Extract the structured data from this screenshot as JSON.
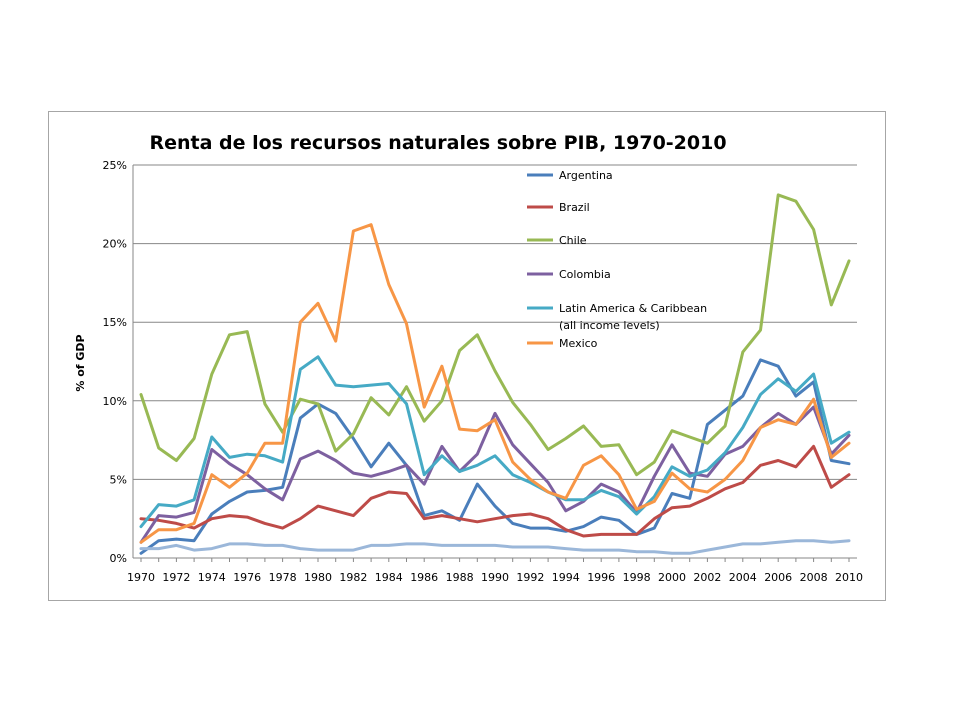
{
  "chart_data": {
    "type": "line",
    "title": "Renta de los recursos naturales sobre PIB, 1970-2010",
    "ylabel": "% of GDP",
    "xlabel": "",
    "ylim": [
      0,
      25
    ],
    "yticks": [
      "0%",
      "5%",
      "10%",
      "15%",
      "20%",
      "25%"
    ],
    "ytick_values": [
      0,
      5,
      10,
      15,
      20,
      25
    ],
    "x": [
      1970,
      1971,
      1972,
      1973,
      1974,
      1975,
      1976,
      1977,
      1978,
      1979,
      1980,
      1981,
      1982,
      1983,
      1984,
      1985,
      1986,
      1987,
      1988,
      1989,
      1990,
      1991,
      1992,
      1993,
      1994,
      1995,
      1996,
      1997,
      1998,
      1999,
      2000,
      2001,
      2002,
      2003,
      2004,
      2005,
      2006,
      2007,
      2008,
      2009,
      2010
    ],
    "xticks": [
      "1970",
      "1972",
      "1974",
      "1976",
      "1978",
      "1980",
      "1982",
      "1984",
      "1986",
      "1988",
      "1990",
      "1992",
      "1994",
      "1996",
      "1998",
      "2000",
      "2002",
      "2004",
      "2006",
      "2008",
      "2010"
    ],
    "grid": "horizontal",
    "legend_position": "top-center",
    "series": [
      {
        "name": "Argentina",
        "color": "#4a7ebb",
        "values": [
          0.3,
          1.1,
          1.2,
          1.1,
          2.8,
          3.6,
          4.2,
          4.3,
          4.5,
          8.9,
          9.8,
          9.2,
          7.6,
          5.8,
          7.3,
          5.9,
          2.7,
          3.0,
          2.4,
          4.7,
          3.3,
          2.2,
          1.9,
          1.9,
          1.7,
          2.0,
          2.6,
          2.4,
          1.5,
          1.9,
          4.1,
          3.8,
          8.5,
          9.4,
          10.3,
          12.6,
          12.2,
          10.3,
          11.2,
          6.2,
          6.0
        ]
      },
      {
        "name": "Brazil",
        "color": "#be4b48",
        "values": [
          2.5,
          2.4,
          2.2,
          1.9,
          2.5,
          2.7,
          2.6,
          2.2,
          1.9,
          2.5,
          3.3,
          3.0,
          2.7,
          3.8,
          4.2,
          4.1,
          2.5,
          2.7,
          2.5,
          2.3,
          2.5,
          2.7,
          2.8,
          2.5,
          1.8,
          1.4,
          1.5,
          1.5,
          1.5,
          2.5,
          3.2,
          3.3,
          3.8,
          4.4,
          4.8,
          5.9,
          6.2,
          5.8,
          7.1,
          4.5,
          5.3
        ]
      },
      {
        "name": "Chile",
        "color": "#98b954",
        "values": [
          10.4,
          7.0,
          6.2,
          7.6,
          11.7,
          14.2,
          14.4,
          9.8,
          8.0,
          10.1,
          9.8,
          6.8,
          7.9,
          10.2,
          9.1,
          10.9,
          8.7,
          10.0,
          13.2,
          14.2,
          11.9,
          9.9,
          8.5,
          6.9,
          7.6,
          8.4,
          7.1,
          7.2,
          5.3,
          6.1,
          8.1,
          7.7,
          7.3,
          8.4,
          13.1,
          14.5,
          23.1,
          22.7,
          20.9,
          16.1,
          18.9
        ]
      },
      {
        "name": "Colombia",
        "color": "#7d60a0",
        "values": [
          1.0,
          2.7,
          2.6,
          2.9,
          6.9,
          6.0,
          5.3,
          4.4,
          3.7,
          6.3,
          6.8,
          6.2,
          5.4,
          5.2,
          5.5,
          5.9,
          4.7,
          7.1,
          5.5,
          6.6,
          9.2,
          7.2,
          6.0,
          4.8,
          3.0,
          3.6,
          4.7,
          4.2,
          2.9,
          5.2,
          7.2,
          5.4,
          5.2,
          6.6,
          7.1,
          8.3,
          9.2,
          8.5,
          9.6,
          6.6,
          7.8
        ]
      },
      {
        "name": "Latin America & Caribbean (all income levels)",
        "name_lines": [
          "Latin America & Caribbean",
          "(all income levels)"
        ],
        "color": "#46aac5",
        "values": [
          2.0,
          3.4,
          3.3,
          3.7,
          7.7,
          6.4,
          6.6,
          6.5,
          6.1,
          12.0,
          12.8,
          11.0,
          10.9,
          11.0,
          11.1,
          9.8,
          5.3,
          6.5,
          5.5,
          5.9,
          6.5,
          5.3,
          4.8,
          4.2,
          3.7,
          3.7,
          4.3,
          3.9,
          2.8,
          3.9,
          5.8,
          5.2,
          5.6,
          6.7,
          8.3,
          10.4,
          11.4,
          10.6,
          11.7,
          7.3,
          8.0
        ]
      },
      {
        "name": "Mexico",
        "color": "#f79646",
        "values": [
          1.0,
          1.8,
          1.8,
          2.2,
          5.3,
          4.5,
          5.4,
          7.3,
          7.3,
          15.0,
          16.2,
          13.8,
          20.8,
          21.2,
          17.4,
          14.9,
          9.6,
          12.2,
          8.2,
          8.1,
          8.8,
          6.1,
          5.0,
          4.2,
          3.8,
          5.9,
          6.5,
          5.3,
          3.1,
          3.6,
          5.4,
          4.4,
          4.2,
          5.0,
          6.2,
          8.3,
          8.8,
          8.5,
          10.1,
          6.4,
          7.3
        ]
      },
      {
        "name": "",
        "color": "#9bb7d9",
        "values": [
          0.6,
          0.6,
          0.8,
          0.5,
          0.6,
          0.9,
          0.9,
          0.8,
          0.8,
          0.6,
          0.5,
          0.5,
          0.5,
          0.8,
          0.8,
          0.9,
          0.9,
          0.8,
          0.8,
          0.8,
          0.8,
          0.7,
          0.7,
          0.7,
          0.6,
          0.5,
          0.5,
          0.5,
          0.4,
          0.4,
          0.3,
          0.3,
          0.5,
          0.7,
          0.9,
          0.9,
          1.0,
          1.1,
          1.1,
          1.0,
          1.1
        ]
      }
    ]
  }
}
